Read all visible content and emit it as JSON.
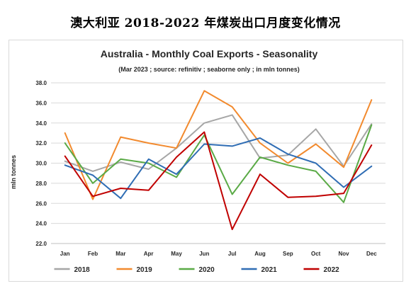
{
  "page": {
    "heading": "澳大利亚 2018-2022 年煤炭出口月度变化情况"
  },
  "chart_data": {
    "type": "line",
    "title": "Australia - Monthly Coal Exports - Seasonality",
    "subtitle": "(Mar 2023 ; source: refinitiv ; seaborne only ; in mln tonnes)",
    "xlabel": "",
    "ylabel": "mln tonnes",
    "ylim": [
      22.0,
      38.0
    ],
    "yticks": [
      "22.0",
      "24.0",
      "26.0",
      "28.0",
      "30.0",
      "32.0",
      "34.0",
      "36.0",
      "38.0"
    ],
    "categories": [
      "Jan",
      "Feb",
      "Mar",
      "Apr",
      "May",
      "Jun",
      "Jul",
      "Aug",
      "Sep",
      "Oct",
      "Nov",
      "Dec"
    ],
    "grid": true,
    "legend_position": "bottom",
    "series": [
      {
        "name": "2018",
        "color": "#a6a6a6",
        "values": [
          30.2,
          29.2,
          30.1,
          29.4,
          31.5,
          34.0,
          34.8,
          30.5,
          30.8,
          33.4,
          29.7,
          33.9
        ]
      },
      {
        "name": "2019",
        "color": "#f28a2e",
        "values": [
          33.0,
          26.4,
          32.6,
          32.0,
          31.5,
          37.2,
          35.6,
          32.0,
          30.0,
          31.9,
          29.6,
          36.3
        ]
      },
      {
        "name": "2020",
        "color": "#5aaa46",
        "values": [
          32.0,
          28.0,
          30.4,
          30.0,
          28.6,
          32.8,
          26.9,
          30.6,
          29.8,
          29.2,
          26.1,
          33.8
        ]
      },
      {
        "name": "2021",
        "color": "#2f6db4",
        "values": [
          29.8,
          28.8,
          26.5,
          30.4,
          28.9,
          31.9,
          31.7,
          32.5,
          30.9,
          30.0,
          27.6,
          29.7
        ]
      },
      {
        "name": "2022",
        "color": "#c00000",
        "values": [
          30.7,
          26.7,
          27.5,
          27.3,
          30.6,
          33.1,
          23.4,
          28.9,
          26.6,
          26.7,
          27.0,
          31.8
        ]
      }
    ]
  }
}
